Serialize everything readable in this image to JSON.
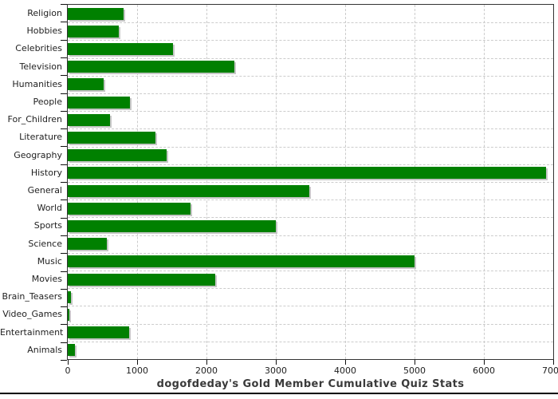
{
  "chart_data": {
    "type": "bar",
    "orientation": "horizontal",
    "title": "dogofdeday's Gold Member Cumulative Quiz Stats",
    "categories": [
      "Religion",
      "Hobbies",
      "Celebrities",
      "Television",
      "Humanities",
      "People",
      "For_Children",
      "Literature",
      "Geography",
      "History",
      "General",
      "World",
      "Sports",
      "Science",
      "Music",
      "Movies",
      "Brain_Teasers",
      "Video_Games",
      "Entertainment",
      "Animals"
    ],
    "values": [
      800,
      730,
      1520,
      2400,
      520,
      900,
      610,
      1260,
      1430,
      6900,
      3480,
      1770,
      3000,
      560,
      5000,
      2130,
      50,
      25,
      885,
      100
    ],
    "xlim": [
      0,
      7000
    ],
    "x_ticks": [
      0,
      1000,
      2000,
      3000,
      4000,
      5000,
      6000,
      7000
    ],
    "grid": true,
    "legend": "none",
    "bar_color": "#008000",
    "shadow_color": "#c6c6c6",
    "grid_color": "#cccccc",
    "frame_color": "#333333",
    "label_color": "#222222",
    "background_color": "#ffffff"
  }
}
